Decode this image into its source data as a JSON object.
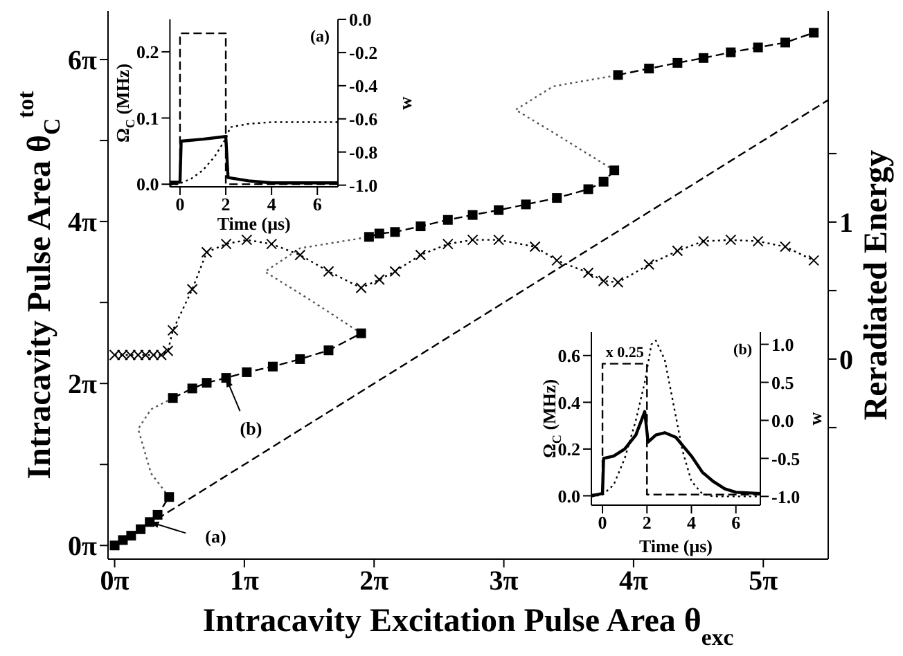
{
  "chart_data": [
    {
      "type": "line",
      "xlabel": "Intracavity Excitation Pulse Area θ$_{exc}$",
      "ylabel": "Intracavity Pulse Area θ$_{C}$$^{tot}$",
      "y2label": "Reradiated Energy",
      "xlim": [
        -0.16,
        17.28
      ],
      "xticks": [
        {
          "value": 0,
          "label": "0π"
        },
        {
          "value": 3.1416,
          "label": "1π"
        },
        {
          "value": 6.2832,
          "label": "2π"
        },
        {
          "value": 9.4248,
          "label": "3π"
        },
        {
          "value": 12.5664,
          "label": "4π"
        },
        {
          "value": 15.708,
          "label": "5π"
        }
      ],
      "ylim": [
        -0.53,
        20.73
      ],
      "yticks": [
        {
          "value": 0,
          "label": "0π"
        },
        {
          "value": 3.1416,
          "label": null
        },
        {
          "value": 6.2832,
          "label": "2π"
        },
        {
          "value": 9.4248,
          "label": null
        },
        {
          "value": 12.5664,
          "label": "4π"
        },
        {
          "value": 15.708,
          "label": null
        },
        {
          "value": 18.8496,
          "label": "6π"
        }
      ],
      "y2lim": [
        -1.46,
        2.54
      ],
      "y2ticks": [
        {
          "value": -0.5,
          "label": null
        },
        0,
        {
          "value": 0.5,
          "label": null
        },
        1,
        {
          "value": 1.5,
          "label": null
        }
      ],
      "series": [
        {
          "color": "#000000",
          "marker": "square",
          "line_style": "dashed",
          "x": [
            0,
            0.2,
            0.4,
            0.63,
            0.85,
            1.04,
            1.32
          ],
          "values": [
            0,
            0.21,
            0.38,
            0.63,
            0.91,
            1.19,
            1.88
          ]
        },
        {
          "color": "#000000",
          "marker": "square",
          "line_style": "dashed",
          "x": [
            1.41,
            1.88,
            2.23,
            2.7,
            3.2,
            3.83,
            4.49,
            5.18,
            5.97
          ],
          "values": [
            5.72,
            6.09,
            6.31,
            6.5,
            6.72,
            6.94,
            7.23,
            7.57,
            8.23
          ]
        },
        {
          "color": "#000000",
          "marker": "square",
          "line_style": "dashed",
          "x": [
            6.16,
            6.41,
            6.79,
            7.41,
            8.07,
            8.67,
            9.3,
            9.96,
            10.71,
            11.47,
            11.84,
            12.1
          ],
          "values": [
            11.97,
            12.1,
            12.16,
            12.38,
            12.63,
            12.82,
            13.01,
            13.23,
            13.48,
            13.82,
            14.11,
            14.55
          ]
        },
        {
          "color": "#000000",
          "marker": "square",
          "line_style": "dashed",
          "x": [
            12.19,
            12.94,
            13.63,
            14.26,
            14.92,
            15.58,
            16.24,
            16.93
          ],
          "values": [
            18.25,
            18.5,
            18.72,
            18.91,
            19.13,
            19.32,
            19.51,
            19.89
          ]
        },
        {
          "color": "#555555",
          "marker": "none",
          "line_style": "dotted",
          "x": [
            1.32,
            0.88,
            0.57,
            0.88,
            1.41
          ],
          "values": [
            1.88,
            2.8,
            4.52,
            5.28,
            5.72
          ]
        },
        {
          "color": "#555555",
          "marker": "none",
          "line_style": "dotted",
          "x": [
            5.97,
            4.74,
            3.64,
            4.49,
            6.16
          ],
          "values": [
            8.23,
            9.52,
            10.62,
            11.53,
            11.97
          ]
        },
        {
          "color": "#555555",
          "marker": "none",
          "line_style": "dotted",
          "x": [
            12.1,
            10.62,
            9.71,
            10.62,
            12.19
          ],
          "values": [
            14.55,
            16.02,
            16.9,
            17.81,
            18.25
          ]
        },
        {
          "color": "#000000",
          "marker": "cross",
          "line_style": "dotted",
          "axis": "y2",
          "x": [
            0,
            0.19,
            0.38,
            0.57,
            0.75,
            0.94,
            1.13,
            1.29,
            1.41,
            1.88,
            2.23,
            2.7,
            3.2,
            3.8,
            4.49,
            5.18,
            5.97,
            6.41,
            6.79,
            7.41,
            8.07,
            8.67,
            9.3,
            10.18,
            10.71,
            11.47,
            11.84,
            12.19,
            12.94,
            13.63,
            14.26,
            14.92,
            15.58,
            16.24,
            16.93
          ],
          "values": [
            0.03,
            0.03,
            0.03,
            0.03,
            0.03,
            0.03,
            0.03,
            0.06,
            0.21,
            0.51,
            0.78,
            0.84,
            0.87,
            0.84,
            0.76,
            0.64,
            0.52,
            0.58,
            0.64,
            0.76,
            0.84,
            0.87,
            0.87,
            0.82,
            0.72,
            0.63,
            0.57,
            0.56,
            0.69,
            0.79,
            0.86,
            0.87,
            0.86,
            0.82,
            0.72
          ]
        },
        {
          "color": "#000000",
          "marker": "none",
          "line_style": "dashed",
          "x": [
            0,
            17.28
          ],
          "values": [
            0,
            17.28
          ]
        }
      ],
      "annotations": [
        {
          "text": "(a)",
          "x": 0.85,
          "y": 0.91
        },
        {
          "text": "(b)",
          "x": 2.7,
          "y": 6.5
        }
      ]
    },
    {
      "type": "line",
      "xlabel": "Time (μs)",
      "ylabel": "Ω$_{C}$ (MHz)",
      "y2label": "w",
      "xlim": [
        -0.44,
        6.9
      ],
      "xticks": [
        0,
        2,
        4,
        6
      ],
      "ylim": [
        -0.004,
        0.249
      ],
      "yticks": [
        {
          "value": 0,
          "label": "0.0"
        },
        0.1,
        0.2
      ],
      "y2lim": [
        -1.01,
        0
      ],
      "y2ticks": [
        {
          "value": -1,
          "label": "-1.0"
        },
        -0.8,
        -0.6,
        -0.4,
        -0.2,
        {
          "value": 0,
          "label": "0.0"
        }
      ],
      "series": [
        {
          "color": "#000000",
          "marker": "none",
          "line_style": "dashed",
          "x": [
            -0.44,
            0,
            0,
            2,
            2,
            6.9
          ],
          "values": [
            0,
            0,
            0.228,
            0.228,
            0,
            0
          ]
        },
        {
          "color": "#000000",
          "marker": "none",
          "line_style": "solid",
          "x": [
            -0.44,
            0,
            0.05,
            1,
            2,
            2.1,
            3,
            4,
            6.9
          ],
          "values": [
            0.003,
            0.003,
            0.065,
            0.068,
            0.072,
            0.01,
            0.005,
            0.002,
            0.002
          ]
        },
        {
          "color": "#000000",
          "marker": "none",
          "line_style": "dotted",
          "axis": "y2",
          "x": [
            -0.44,
            0,
            0.5,
            1,
            1.5,
            2,
            2.2,
            3,
            4,
            6.9
          ],
          "values": [
            -1,
            -0.99,
            -0.96,
            -0.91,
            -0.83,
            -0.72,
            -0.65,
            -0.63,
            -0.62,
            -0.62
          ]
        }
      ],
      "annotations": [
        "(a)"
      ]
    },
    {
      "type": "line",
      "xlabel": "Time (μs)",
      "ylabel": "Ω$_{C}$ (MHz)",
      "y2label": "w",
      "xlim": [
        -0.5,
        7.1
      ],
      "xticks": [
        0,
        2,
        4,
        6
      ],
      "ylim": [
        -0.04,
        0.7
      ],
      "yticks": [
        {
          "value": 0,
          "label": "0.0"
        },
        0.2,
        0.4,
        0.6
      ],
      "y2lim": [
        -1.115,
        1.16
      ],
      "y2ticks": [
        {
          "value": -1,
          "label": "-1.0"
        },
        -0.5,
        {
          "value": 0,
          "label": "0.0"
        },
        0.5,
        {
          "value": 1,
          "label": "1.0"
        }
      ],
      "series": [
        {
          "color": "#000000",
          "marker": "none",
          "line_style": "dashed",
          "x": [
            -0.5,
            0,
            0,
            2,
            2,
            7.1
          ],
          "values": [
            0.005,
            0.005,
            0.565,
            0.565,
            0.005,
            0.005
          ]
        },
        {
          "color": "#000000",
          "marker": "none",
          "line_style": "solid",
          "x": [
            -0.5,
            0,
            0.05,
            0.5,
            1,
            1.5,
            1.9,
            2.05,
            2.4,
            2.8,
            3.3,
            4,
            4.5,
            5,
            5.5,
            6,
            7.1
          ],
          "values": [
            0,
            0.01,
            0.16,
            0.17,
            0.2,
            0.26,
            0.36,
            0.23,
            0.26,
            0.27,
            0.25,
            0.17,
            0.1,
            0.06,
            0.03,
            0.015,
            0.01
          ]
        },
        {
          "color": "#000000",
          "marker": "none",
          "line_style": "dotted",
          "axis": "y2",
          "x": [
            -0.5,
            0,
            0.5,
            1,
            1.5,
            1.9,
            2.2,
            2.4,
            2.8,
            3.2,
            3.6,
            4,
            4.5,
            5,
            7.1
          ],
          "values": [
            -1,
            -0.98,
            -0.85,
            -0.5,
            0,
            0.5,
            1,
            1.05,
            0.8,
            0.2,
            -0.4,
            -0.8,
            -0.97,
            -1,
            -1
          ]
        }
      ],
      "annotations": [
        "(b)",
        {
          "text": "x 0.25",
          "x": 1,
          "y": 0.565
        }
      ]
    }
  ]
}
